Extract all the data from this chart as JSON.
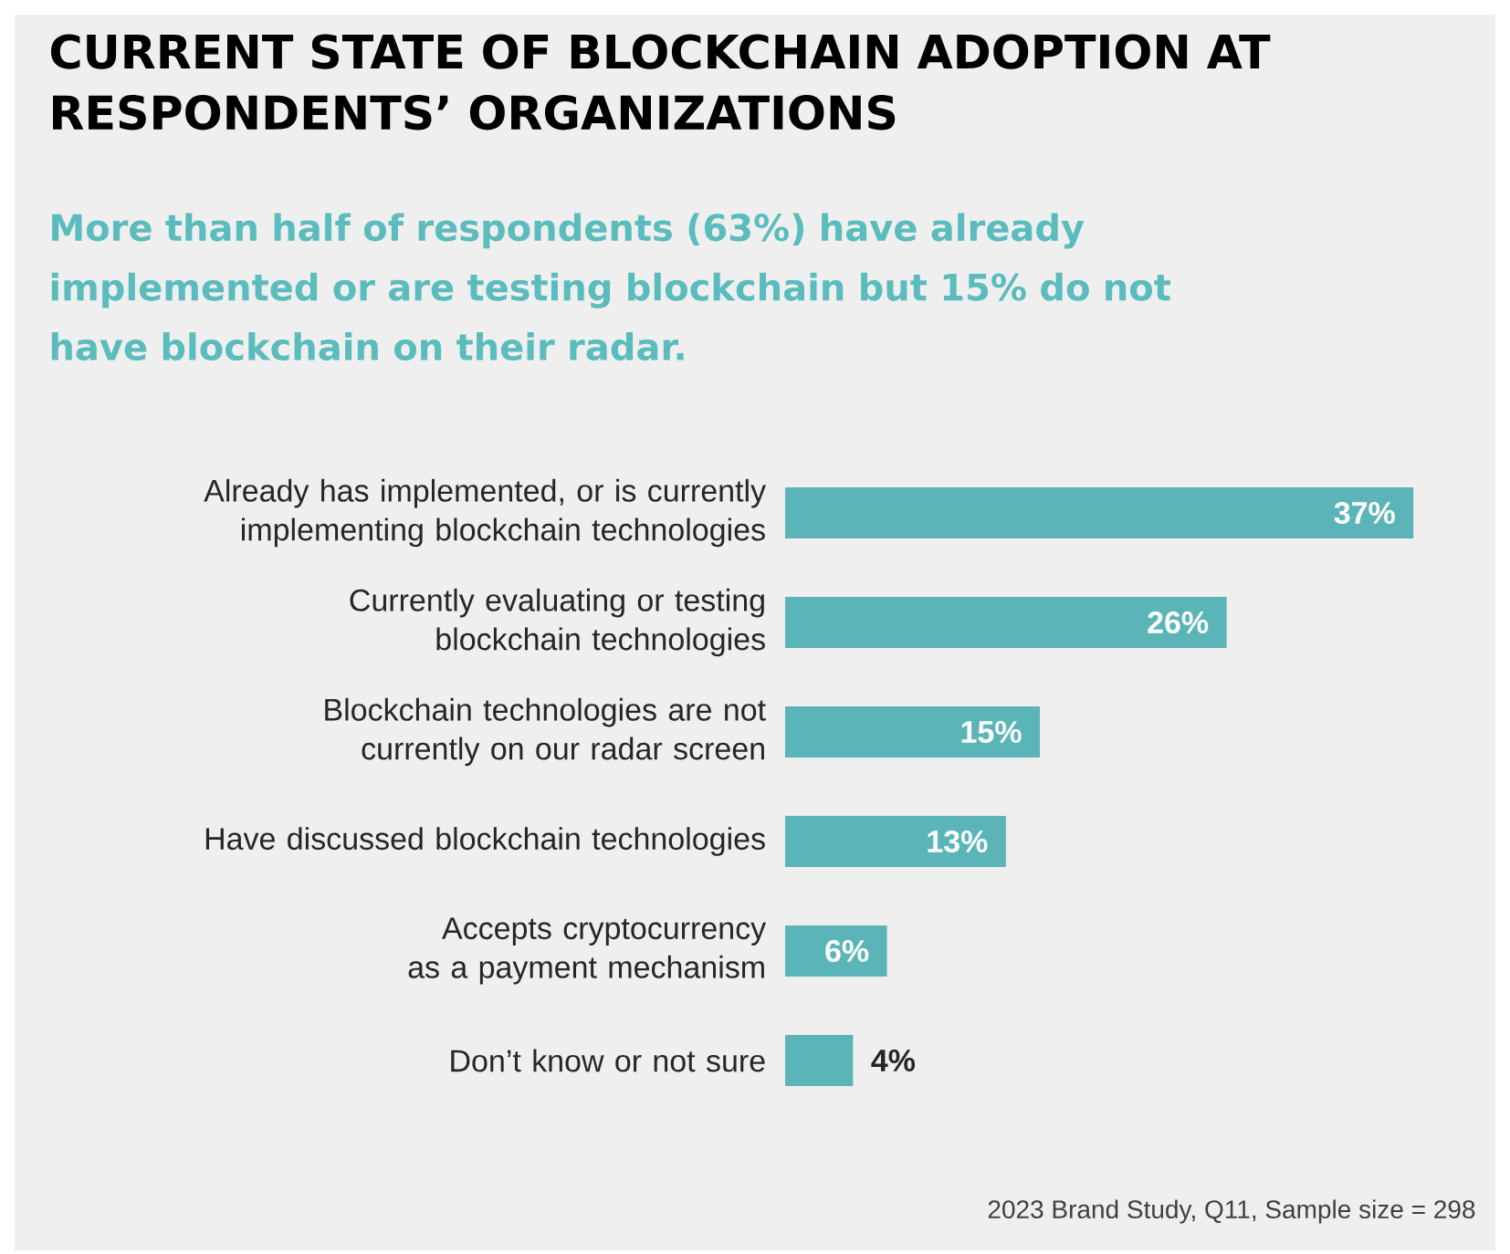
{
  "chart_data": {
    "type": "bar",
    "orientation": "horizontal",
    "title": "CURRENT STATE OF BLOCKCHAIN ADOPTION AT RESPONDENTS’ ORGANIZATIONS",
    "subtitle": "More than half of respondents (63%) have already implemented or are testing blockchain but 15% do not have blockchain on their radar.",
    "categories": [
      "Already has implemented, or is currently implementing blockchain technologies",
      "Currently evaluating or testing blockchain technologies",
      "Blockchain technologies are not currently on our radar screen",
      "Have discussed blockchain technologies",
      "Accepts cryptocurrency as a payment mechanism",
      "Don’t know or not sure"
    ],
    "values": [
      37,
      26,
      15,
      13,
      6,
      4
    ],
    "value_labels": [
      "37%",
      "26%",
      "15%",
      "13%",
      "6%",
      "4%"
    ],
    "color": "#5bb5b8",
    "tick_labels": "y",
    "annotations": [
      "2023 Brand Study, Q11, Sample size = 298"
    ]
  }
}
